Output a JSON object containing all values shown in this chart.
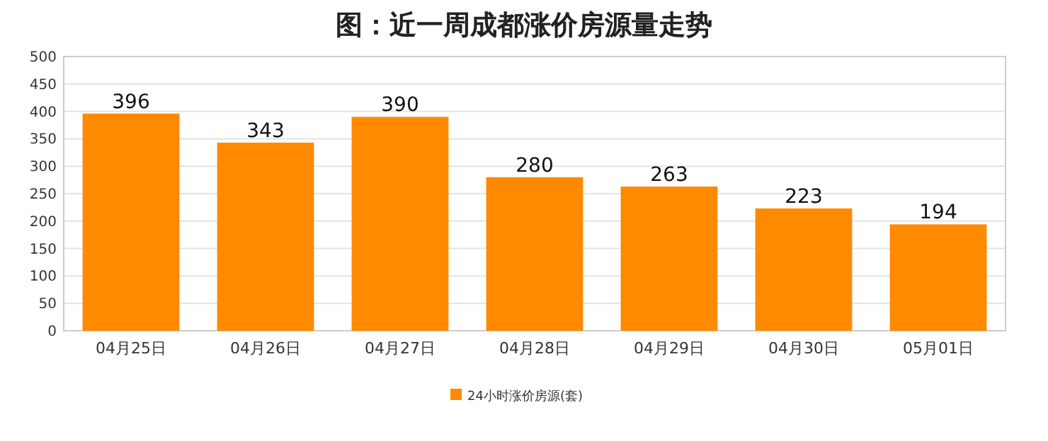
{
  "chart_data": {
    "type": "bar",
    "title": "图：近一周成都涨价房源量走势",
    "categories": [
      "04月25日",
      "04月26日",
      "04月27日",
      "04月28日",
      "04月29日",
      "04月30日",
      "05月01日"
    ],
    "series": [
      {
        "name": "24小时涨价房源(套)",
        "color": "#ff8a00",
        "values": [
          396,
          343,
          390,
          280,
          263,
          223,
          194
        ]
      }
    ],
    "ylim": [
      0,
      500
    ],
    "yticks": [
      0,
      50,
      100,
      150,
      200,
      250,
      300,
      350,
      400,
      450,
      500
    ],
    "grid": "y",
    "data_labels": true,
    "legend": "bottom"
  }
}
